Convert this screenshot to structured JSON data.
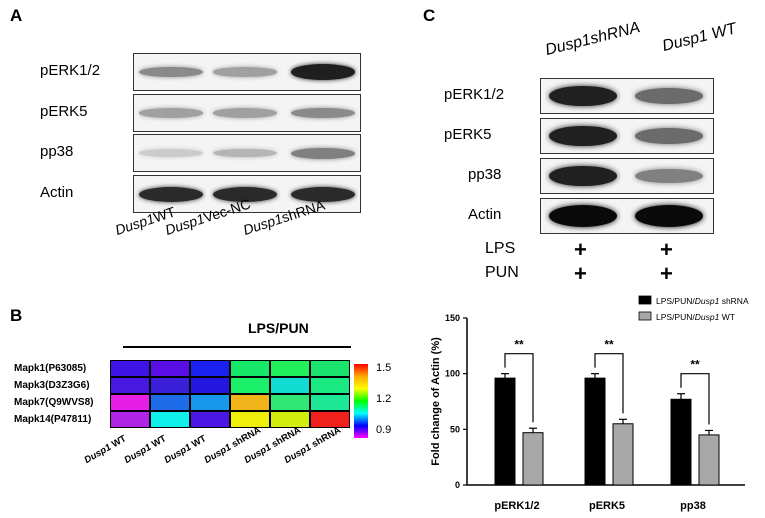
{
  "panels": {
    "a": {
      "letter": "A",
      "rows": [
        "pERK1/2",
        "pERK5",
        "pp38",
        "Actin"
      ],
      "lanes": [
        {
          "italic": "Dusp1",
          "rest": "WT"
        },
        {
          "italic": "Dusp1",
          "rest": "Vec-NC"
        },
        {
          "italic": "Dusp1",
          "rest": "shRNA"
        }
      ],
      "band_intensity": [
        [
          0.45,
          0.35,
          0.95
        ],
        [
          0.35,
          0.35,
          0.45
        ],
        [
          0.15,
          0.25,
          0.5
        ],
        [
          0.9,
          0.9,
          0.9
        ]
      ]
    },
    "b": {
      "letter": "B",
      "title": "LPS/PUN",
      "rows": [
        "Mapk1(P63085)",
        "Mapk3(D3Z3G6)",
        "Mapk7(Q9WVS8)",
        "Mapk14(P47811)"
      ],
      "cols": [
        {
          "italic": "Dusp1",
          "rest": " WT"
        },
        {
          "italic": "Dusp1",
          "rest": " WT"
        },
        {
          "italic": "Dusp1",
          "rest": " WT"
        },
        {
          "italic": "Dusp1",
          "rest": " shRNA"
        },
        {
          "italic": "Dusp1",
          "rest": " shRNA"
        },
        {
          "italic": "Dusp1",
          "rest": " shRNA"
        }
      ],
      "colorbar_ticks": [
        "1.5",
        "1.2",
        "0.9"
      ],
      "cell_colors": [
        [
          "#3f14e6",
          "#5a0ee6",
          "#1a20f0",
          "#18e86a",
          "#22f05a",
          "#1ae46e"
        ],
        [
          "#4618e0",
          "#3a1ed8",
          "#2418e0",
          "#1cf06a",
          "#10dcd2",
          "#1ae880"
        ],
        [
          "#e61ee6",
          "#1e6ce8",
          "#1898ea",
          "#f0b41a",
          "#30e674",
          "#1ee896"
        ],
        [
          "#b024e8",
          "#10f0ea",
          "#4a18e2",
          "#eef00a",
          "#d2ee0e",
          "#f0201a"
        ]
      ]
    },
    "c": {
      "letter": "C",
      "lanes": [
        {
          "italic": "Dusp1",
          "rest": "shRNA"
        },
        {
          "italic": "Dusp1",
          "rest": " WT"
        }
      ],
      "rows": [
        "pERK1/2",
        "pERK5",
        "pp38",
        "Actin"
      ],
      "treatments": [
        {
          "label": "LPS",
          "marks": [
            "+",
            "+"
          ]
        },
        {
          "label": "PUN",
          "marks": [
            "+",
            "+"
          ]
        }
      ],
      "band_intensity": [
        [
          0.9,
          0.55
        ],
        [
          0.9,
          0.55
        ],
        [
          0.9,
          0.45
        ],
        [
          1.0,
          1.0
        ]
      ]
    }
  },
  "chart_data": {
    "type": "bar",
    "categories": [
      "pERK1/2",
      "pERK5",
      "pp38"
    ],
    "series": [
      {
        "name": "LPS/PUN/Dusp1 shRNA",
        "name_prefix": "LPS/PUN/",
        "name_italic": "Dusp1",
        "name_suffix": " shRNA",
        "color": "#000000",
        "values": [
          96,
          96,
          77
        ],
        "errors": [
          4,
          4,
          5
        ]
      },
      {
        "name": "LPS/PUN/Dusp1 WT",
        "name_prefix": "LPS/PUN/",
        "name_italic": "Dusp1",
        "name_suffix": " WT",
        "color": "#a8a8a8",
        "values": [
          47,
          55,
          45
        ],
        "errors": [
          4,
          4,
          4
        ]
      }
    ],
    "significance": [
      "**",
      "**",
      "**"
    ],
    "ylabel": "Fold change of Actin (%)",
    "ylim": [
      0,
      150
    ],
    "yticks": [
      "0",
      "50",
      "100",
      "150"
    ],
    "legend_position": "top-right"
  }
}
